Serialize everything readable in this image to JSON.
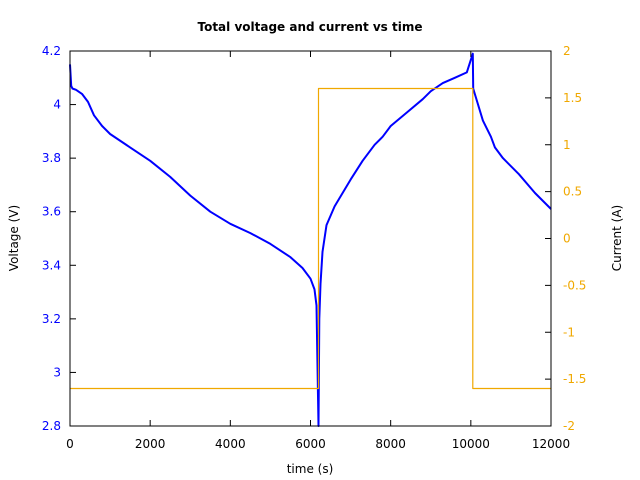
{
  "chart_data": {
    "type": "line",
    "title": "Total voltage and current vs time",
    "xlabel": "time (s)",
    "ylabel": "Voltage (V)",
    "y2label": "Current (A)",
    "xlim": [
      0,
      12000
    ],
    "ylim": [
      2.8,
      4.2
    ],
    "y2lim": [
      -2,
      2
    ],
    "grid": false,
    "legend": "none",
    "x_ticks": [
      "0",
      "2000",
      "4000",
      "6000",
      "8000",
      "10000",
      "12000"
    ],
    "y_ticks": [
      "2.8",
      "3",
      "3.2",
      "3.4",
      "3.6",
      "3.8",
      "4",
      "4.2"
    ],
    "y2_ticks": [
      "-2",
      "-1.5",
      "-1",
      "-0.5",
      "0",
      "0.5",
      "1",
      "1.5",
      "2"
    ],
    "colors": {
      "voltage": "#0000ff",
      "current": "#f0a800"
    },
    "series": [
      {
        "name": "Voltage",
        "axis": "left",
        "x": [
          0,
          30,
          60,
          150,
          300,
          450,
          600,
          800,
          1000,
          1500,
          2000,
          2500,
          3000,
          3500,
          4000,
          4500,
          5000,
          5500,
          5800,
          6000,
          6100,
          6150,
          6200,
          6220,
          6250,
          6300,
          6400,
          6600,
          6800,
          7000,
          7300,
          7600,
          7800,
          8000,
          8400,
          8800,
          9000,
          9300,
          9600,
          9900,
          10050,
          10060,
          10100,
          10300,
          10500,
          10600,
          10800,
          11200,
          11600,
          12000
        ],
        "values": [
          4.15,
          4.07,
          4.06,
          4.055,
          4.04,
          4.01,
          3.96,
          3.92,
          3.89,
          3.84,
          3.79,
          3.73,
          3.66,
          3.6,
          3.555,
          3.52,
          3.48,
          3.43,
          3.39,
          3.35,
          3.31,
          3.25,
          2.8,
          3.2,
          3.33,
          3.45,
          3.55,
          3.62,
          3.67,
          3.72,
          3.79,
          3.85,
          3.88,
          3.92,
          3.97,
          4.02,
          4.05,
          4.08,
          4.1,
          4.12,
          4.19,
          4.06,
          4.04,
          3.94,
          3.88,
          3.84,
          3.8,
          3.74,
          3.67,
          3.61
        ]
      },
      {
        "name": "Current",
        "axis": "right",
        "x": [
          0,
          6200,
          6200,
          10050,
          10050,
          12000
        ],
        "values": [
          -1.6,
          -1.6,
          1.6,
          1.6,
          -1.6,
          -1.6
        ]
      }
    ]
  }
}
